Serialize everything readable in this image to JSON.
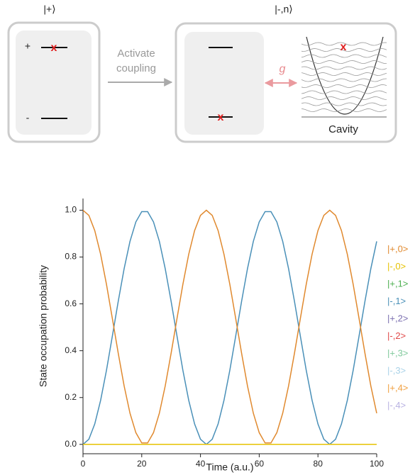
{
  "diagram": {
    "left_label": "|+⟩",
    "right_label": "|-,n⟩",
    "plus": "+",
    "minus": "-",
    "arrow_text": [
      "Activate",
      "coupling"
    ],
    "coupling": "g",
    "cavity": "Cavity"
  },
  "chart_data": {
    "type": "line",
    "x_label": "Time (a.u.)",
    "y_label": "State occupation probability",
    "x": [
      0,
      2,
      4,
      6,
      8,
      10,
      12,
      14,
      16,
      18,
      20,
      22,
      24,
      26,
      28,
      30,
      32,
      34,
      36,
      38,
      40,
      42,
      44,
      46,
      48,
      50,
      52,
      54,
      56,
      58,
      60,
      62,
      64,
      66,
      68,
      70,
      72,
      74,
      76,
      78,
      80,
      82,
      84,
      86,
      88,
      90,
      92,
      94,
      96,
      98,
      100
    ],
    "series": [
      {
        "name": "|+,0>",
        "color": "#e0892e",
        "values": [
          1,
          0.978,
          0.913,
          0.812,
          0.683,
          0.537,
          0.389,
          0.25,
          0.133,
          0.05,
          0.006,
          0.006,
          0.05,
          0.133,
          0.25,
          0.389,
          0.537,
          0.683,
          0.812,
          0.913,
          0.978,
          1,
          0.978,
          0.913,
          0.812,
          0.683,
          0.537,
          0.389,
          0.25,
          0.133,
          0.05,
          0.006,
          0.006,
          0.05,
          0.133,
          0.25,
          0.389,
          0.537,
          0.683,
          0.812,
          0.913,
          0.978,
          1,
          0.978,
          0.913,
          0.812,
          0.683,
          0.537,
          0.389,
          0.25,
          0.133
        ]
      },
      {
        "name": "|-,0>",
        "color": "#e6c200",
        "values": [
          0,
          0,
          0,
          0,
          0,
          0,
          0,
          0,
          0,
          0,
          0,
          0,
          0,
          0,
          0,
          0,
          0,
          0,
          0,
          0,
          0,
          0,
          0,
          0,
          0,
          0,
          0,
          0,
          0,
          0,
          0,
          0,
          0,
          0,
          0,
          0,
          0,
          0,
          0,
          0,
          0,
          0,
          0,
          0,
          0,
          0,
          0,
          0,
          0,
          0,
          0
        ]
      },
      {
        "name": "|+,1>",
        "color": "#4caf50",
        "values": [
          0,
          0,
          0,
          0,
          0,
          0,
          0,
          0,
          0,
          0,
          0,
          0,
          0,
          0,
          0,
          0,
          0,
          0,
          0,
          0,
          0,
          0,
          0,
          0,
          0,
          0,
          0,
          0,
          0,
          0,
          0,
          0,
          0,
          0,
          0,
          0,
          0,
          0,
          0,
          0,
          0,
          0,
          0,
          0,
          0,
          0,
          0,
          0,
          0,
          0,
          0
        ]
      },
      {
        "name": "|-,1>",
        "color": "#4a90b8",
        "values": [
          0,
          0.022,
          0.087,
          0.188,
          0.317,
          0.463,
          0.611,
          0.75,
          0.867,
          0.95,
          0.994,
          0.994,
          0.95,
          0.867,
          0.75,
          0.611,
          0.463,
          0.317,
          0.188,
          0.087,
          0.022,
          0,
          0.022,
          0.087,
          0.188,
          0.317,
          0.463,
          0.611,
          0.75,
          0.867,
          0.95,
          0.994,
          0.994,
          0.95,
          0.867,
          0.75,
          0.611,
          0.463,
          0.317,
          0.188,
          0.087,
          0.022,
          0,
          0.022,
          0.087,
          0.188,
          0.317,
          0.463,
          0.611,
          0.75,
          0.867
        ]
      },
      {
        "name": "|+,2>",
        "color": "#7b6fb0",
        "values": [
          0,
          0,
          0,
          0,
          0,
          0,
          0,
          0,
          0,
          0,
          0,
          0,
          0,
          0,
          0,
          0,
          0,
          0,
          0,
          0,
          0,
          0,
          0,
          0,
          0,
          0,
          0,
          0,
          0,
          0,
          0,
          0,
          0,
          0,
          0,
          0,
          0,
          0,
          0,
          0,
          0,
          0,
          0,
          0,
          0,
          0,
          0,
          0,
          0,
          0,
          0
        ]
      },
      {
        "name": "|-,2>",
        "color": "#e04848",
        "values": [
          0,
          0,
          0,
          0,
          0,
          0,
          0,
          0,
          0,
          0,
          0,
          0,
          0,
          0,
          0,
          0,
          0,
          0,
          0,
          0,
          0,
          0,
          0,
          0,
          0,
          0,
          0,
          0,
          0,
          0,
          0,
          0,
          0,
          0,
          0,
          0,
          0,
          0,
          0,
          0,
          0,
          0,
          0,
          0,
          0,
          0,
          0,
          0,
          0,
          0,
          0
        ]
      },
      {
        "name": "|+,3>",
        "color": "#80c99c",
        "values": [
          0,
          0,
          0,
          0,
          0,
          0,
          0,
          0,
          0,
          0,
          0,
          0,
          0,
          0,
          0,
          0,
          0,
          0,
          0,
          0,
          0,
          0,
          0,
          0,
          0,
          0,
          0,
          0,
          0,
          0,
          0,
          0,
          0,
          0,
          0,
          0,
          0,
          0,
          0,
          0,
          0,
          0,
          0,
          0,
          0,
          0,
          0,
          0,
          0,
          0,
          0
        ]
      },
      {
        "name": "|-,3>",
        "color": "#a9d2e8",
        "values": [
          0,
          0,
          0,
          0,
          0,
          0,
          0,
          0,
          0,
          0,
          0,
          0,
          0,
          0,
          0,
          0,
          0,
          0,
          0,
          0,
          0,
          0,
          0,
          0,
          0,
          0,
          0,
          0,
          0,
          0,
          0,
          0,
          0,
          0,
          0,
          0,
          0,
          0,
          0,
          0,
          0,
          0,
          0,
          0,
          0,
          0,
          0,
          0,
          0,
          0,
          0
        ]
      },
      {
        "name": "|+,4>",
        "color": "#f0a040",
        "values": [
          0,
          0,
          0,
          0,
          0,
          0,
          0,
          0,
          0,
          0,
          0,
          0,
          0,
          0,
          0,
          0,
          0,
          0,
          0,
          0,
          0,
          0,
          0,
          0,
          0,
          0,
          0,
          0,
          0,
          0,
          0,
          0,
          0,
          0,
          0,
          0,
          0,
          0,
          0,
          0,
          0,
          0,
          0,
          0,
          0,
          0,
          0,
          0,
          0,
          0,
          0
        ]
      },
      {
        "name": "|-,4>",
        "color": "#b9b2e2",
        "values": [
          0,
          0,
          0,
          0,
          0,
          0,
          0,
          0,
          0,
          0,
          0,
          0,
          0,
          0,
          0,
          0,
          0,
          0,
          0,
          0,
          0,
          0,
          0,
          0,
          0,
          0,
          0,
          0,
          0,
          0,
          0,
          0,
          0,
          0,
          0,
          0,
          0,
          0,
          0,
          0,
          0,
          0,
          0,
          0,
          0,
          0,
          0,
          0,
          0,
          0,
          0
        ]
      }
    ],
    "xlim": [
      0,
      100
    ],
    "xticks": [
      0,
      20,
      40,
      60,
      80,
      100
    ],
    "ylim": [
      -0.04,
      1.05
    ],
    "yticks": [
      {
        "value": 0,
        "label": "0.0"
      },
      {
        "value": 0.2,
        "label": "0.2"
      },
      {
        "value": 0.4,
        "label": "0.4"
      },
      {
        "value": 0.6,
        "label": "0.6"
      },
      {
        "value": 0.8,
        "label": "0.8"
      },
      {
        "value": 1,
        "label": "1.0"
      }
    ],
    "legend": "right"
  }
}
